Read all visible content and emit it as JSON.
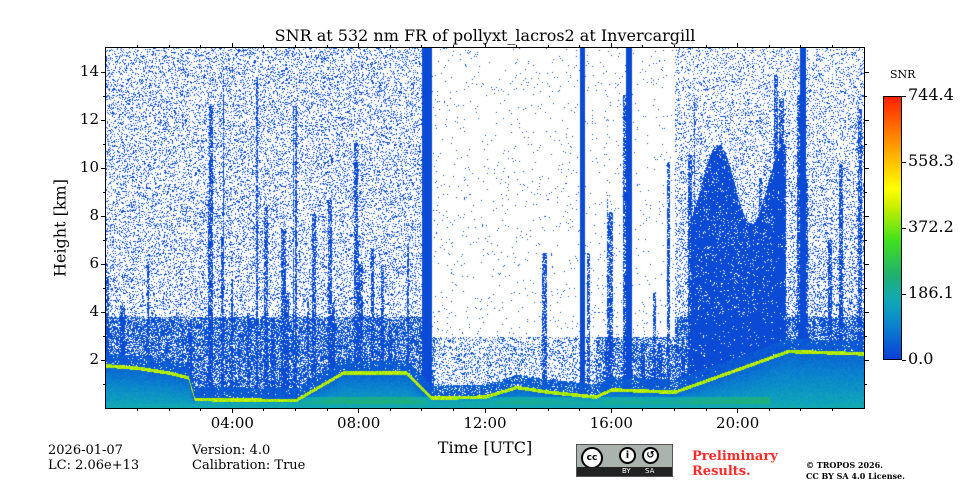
{
  "chart_data": {
    "type": "heatmap",
    "title": "SNR at 532 nm FR of pollyxt_lacros2 at Invercargill",
    "xlabel": "Time [UTC]",
    "ylabel": "Height [km]",
    "xlim_hours": [
      0,
      24
    ],
    "ylim_km": [
      0,
      15
    ],
    "x_ticks": [
      {
        "h": 4,
        "label": "04:00"
      },
      {
        "h": 8,
        "label": "08:00"
      },
      {
        "h": 12,
        "label": "12:00"
      },
      {
        "h": 16,
        "label": "16:00"
      },
      {
        "h": 20,
        "label": "20:00"
      }
    ],
    "y_ticks": [
      {
        "v": 2,
        "label": "2"
      },
      {
        "v": 4,
        "label": "4"
      },
      {
        "v": 6,
        "label": "6"
      },
      {
        "v": 8,
        "label": "8"
      },
      {
        "v": 10,
        "label": "10"
      },
      {
        "v": 12,
        "label": "12"
      },
      {
        "v": 14,
        "label": "14"
      }
    ],
    "colorbar": {
      "title": "SNR",
      "range": [
        0.0,
        744.4
      ],
      "ticks": [
        {
          "v": 0,
          "label": "0.0"
        },
        {
          "v": 186.1,
          "label": "186.1"
        },
        {
          "v": 372.2,
          "label": "372.2"
        },
        {
          "v": 558.3,
          "label": "558.3"
        },
        {
          "v": 744.4,
          "label": "744.4"
        }
      ],
      "colors": [
        "#0a3fd6",
        "#10a8b8",
        "#40e020",
        "#ffff00",
        "#ff7000",
        "#ff2000"
      ]
    },
    "features": {
      "saturated_columns_hours": [
        [
          10.0,
          10.3
        ],
        [
          15.0,
          15.15
        ],
        [
          16.45,
          16.65
        ],
        [
          21.95,
          22.15
        ]
      ],
      "cloud_block_hours_km": [
        18.5,
        21.5,
        11
      ],
      "layer_profile": [
        [
          0,
          1.7
        ],
        [
          1,
          1.6
        ],
        [
          2,
          1.4
        ],
        [
          2.6,
          1.2
        ],
        [
          2.8,
          0.3
        ],
        [
          6,
          0.25
        ],
        [
          7.5,
          1.4
        ],
        [
          9.5,
          1.4
        ],
        [
          10.3,
          0.35
        ],
        [
          12,
          0.4
        ],
        [
          13,
          0.8
        ],
        [
          14,
          0.6
        ],
        [
          15.5,
          0.4
        ],
        [
          16,
          0.7
        ],
        [
          18,
          0.6
        ],
        [
          21.6,
          2.3
        ],
        [
          24,
          2.2
        ]
      ]
    }
  },
  "footer": {
    "date": "2026-01-07",
    "lc": "LC: 2.06e+13",
    "version": "Version: 4.0",
    "calibration": "Calibration: True",
    "license_badge": [
      "cc",
      "BY",
      "SA"
    ],
    "preliminary": [
      "Preliminary",
      "Results."
    ],
    "copyright": "© TROPOS 2026.",
    "license": "CC BY SA 4.0 License."
  }
}
